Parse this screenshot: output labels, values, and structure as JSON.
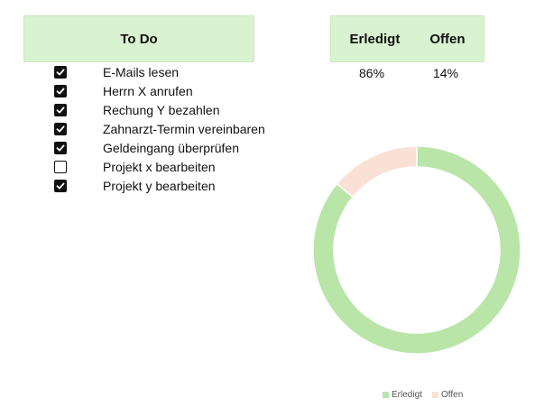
{
  "header": {
    "todo_title": "To Do",
    "done_title": "Erledigt",
    "open_title": "Offen"
  },
  "todos": [
    {
      "label": "E-Mails lesen",
      "checked": true
    },
    {
      "label": "Herrn X anrufen",
      "checked": true
    },
    {
      "label": "Rechung Y bezahlen",
      "checked": true
    },
    {
      "label": "Zahnarzt-Termin vereinbaren",
      "checked": true
    },
    {
      "label": "Geldeingang überprüfen",
      "checked": true
    },
    {
      "label": "Projekt x bearbeiten",
      "checked": false
    },
    {
      "label": "Projekt y bearbeiten",
      "checked": true
    }
  ],
  "stats": {
    "done_pct": "86%",
    "open_pct": "14%"
  },
  "colors": {
    "header_bg": "#d9f2d0",
    "done": "#b9e5a9",
    "open": "#fbe1d5"
  },
  "chart_data": {
    "type": "pie",
    "donut": true,
    "categories": [
      "Erledigt",
      "Offen"
    ],
    "values": [
      86,
      14
    ],
    "legend": "bottom",
    "legend_labels": {
      "done": "Erledigt",
      "open": "Offen"
    }
  }
}
